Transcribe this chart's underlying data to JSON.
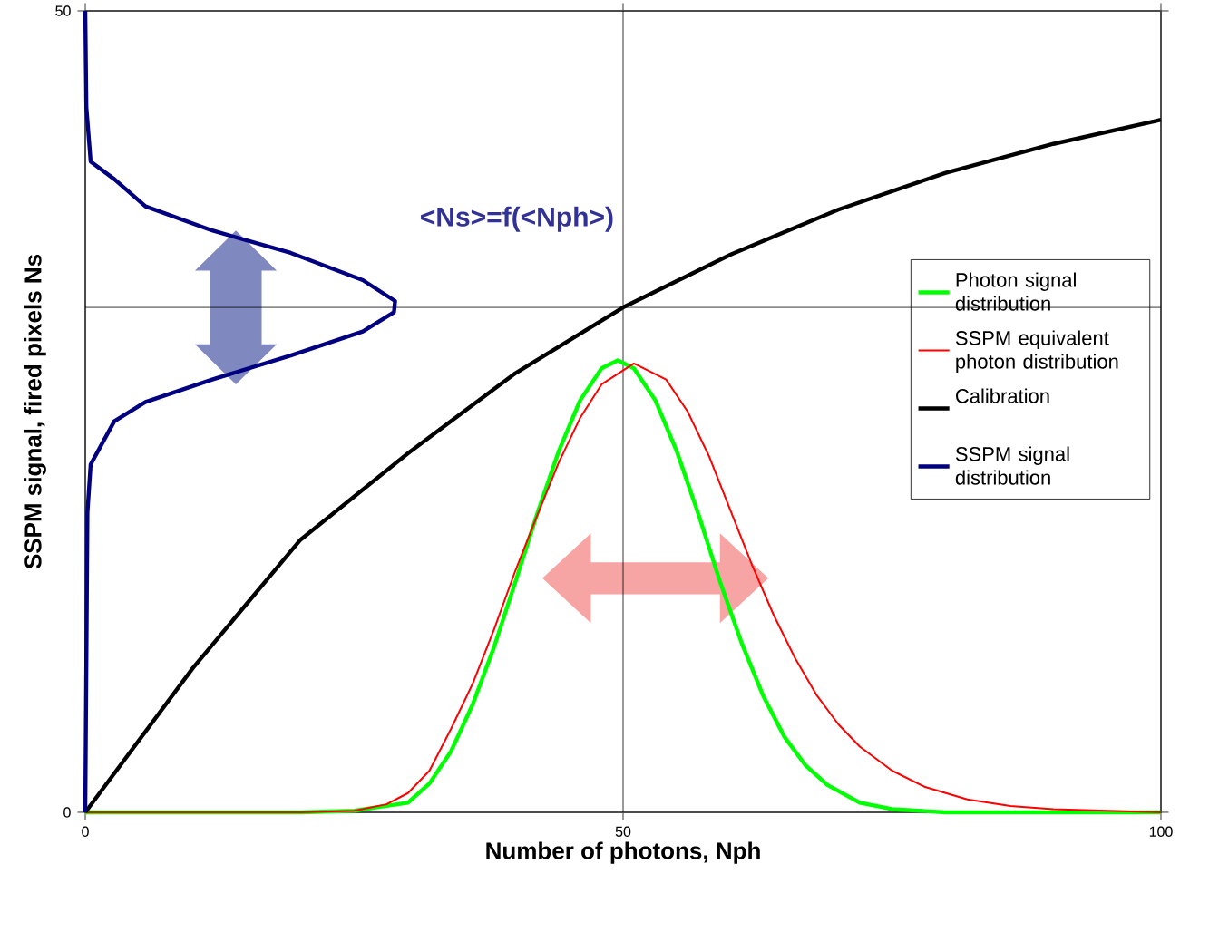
{
  "chart_data": {
    "type": "line",
    "xlabel": "Number of photons, Nph",
    "ylabel": "SSPM signal, fired pixels Ns",
    "xlim": [
      0,
      100
    ],
    "ylim": [
      0,
      50
    ],
    "xticks": [
      0,
      50,
      100
    ],
    "yticks": [
      0,
      50
    ],
    "legend": "right",
    "grid": false,
    "marker": "none",
    "line_style": "solid",
    "annotations": [
      "<Ns>=f(<Nph>)"
    ],
    "ref_lines": [
      {
        "axis": "x",
        "value": 50,
        "color": "#000000"
      },
      {
        "axis": "y",
        "value": 31.5,
        "color": "#000000"
      }
    ],
    "series": [
      {
        "name": "Photon signal distribution",
        "color": "#00ff00",
        "x": [
          0,
          20,
          25,
          27,
          30,
          32,
          34,
          36,
          38,
          40,
          42,
          44,
          46,
          48,
          49.5,
          51,
          53,
          55,
          57,
          59,
          61,
          63,
          65,
          67,
          69,
          72,
          75,
          80,
          100
        ],
        "values": [
          0,
          0,
          0.1,
          0.3,
          0.6,
          1.8,
          3.8,
          6.7,
          10.3,
          14.4,
          18.6,
          22.5,
          25.7,
          27.7,
          28.2,
          27.7,
          25.7,
          22.5,
          18.6,
          14.4,
          10.6,
          7.3,
          4.7,
          2.9,
          1.7,
          0.6,
          0.2,
          0,
          0
        ]
      },
      {
        "name": "SSPM equivalent photon distribution",
        "color": "#ff0000",
        "x": [
          0,
          20,
          25,
          28,
          30,
          32,
          34,
          36,
          38,
          40,
          42,
          44,
          46,
          48,
          51,
          54,
          56,
          58,
          60,
          62,
          64,
          66,
          68,
          70,
          72,
          75,
          78,
          82,
          86,
          90,
          95,
          100
        ],
        "values": [
          0,
          0,
          0.1,
          0.5,
          1.2,
          2.6,
          5.2,
          8.0,
          11.4,
          15.1,
          18.5,
          21.8,
          24.6,
          26.7,
          28.0,
          27.0,
          25.0,
          22.2,
          18.8,
          15.4,
          12.3,
          9.6,
          7.3,
          5.5,
          4.1,
          2.6,
          1.6,
          0.8,
          0.4,
          0.2,
          0.1,
          0
        ]
      },
      {
        "name": "Calibration",
        "color": "#000000",
        "x": [
          0,
          10,
          20,
          30,
          40,
          50,
          60,
          70,
          80,
          90,
          100
        ],
        "values": [
          0,
          9.0,
          17.0,
          22.4,
          27.4,
          31.5,
          34.8,
          37.6,
          39.9,
          41.7,
          43.2
        ]
      },
      {
        "name": "SSPM signal distribution",
        "color": "#000080",
        "x": [
          0,
          0.1,
          0.5,
          2.7,
          5.6,
          11.8,
          19.1,
          25.8,
          28.8,
          28.7,
          25.8,
          19.1,
          11.8,
          5.6,
          2.7,
          0.5,
          0.2,
          0
        ],
        "values": [
          50,
          44,
          40.6,
          39.5,
          37.8,
          36.3,
          34.9,
          33.2,
          31.9,
          31.2,
          30.0,
          28.5,
          27.0,
          25.6,
          24.4,
          21.7,
          18.7,
          0
        ]
      }
    ]
  }
}
